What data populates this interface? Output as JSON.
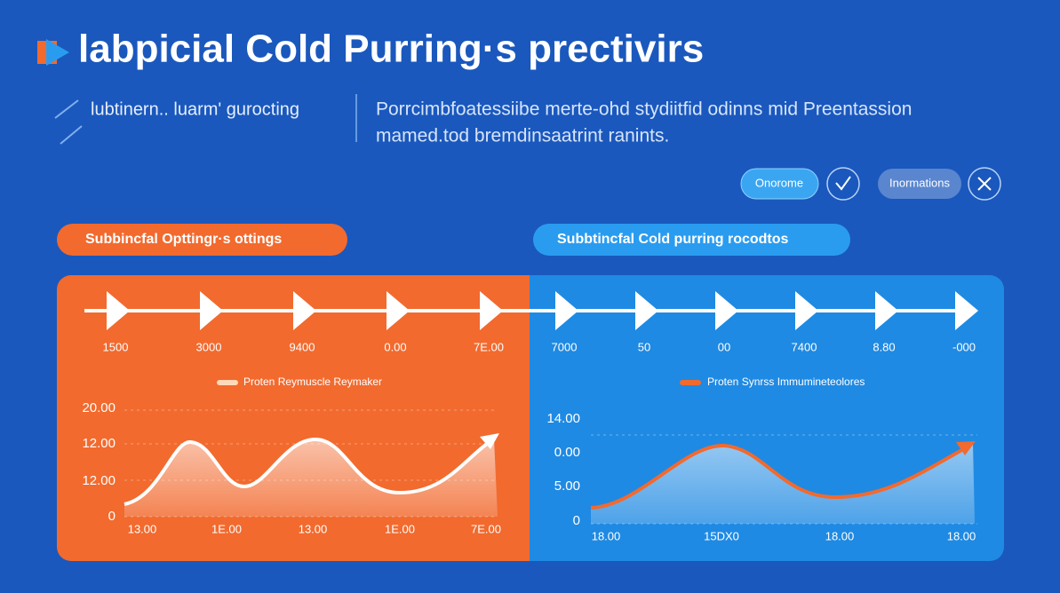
{
  "header": {
    "title": "labpicial Cold Purring·s prectivirs",
    "subtitle": "lubtinern.. luarm' gurocting",
    "description": [
      "Porrcimbfoatessiibe merte-ohd stydiitfid odinns mid Preentassion",
      "mamed.tod bremdinsaatrint ranints."
    ]
  },
  "toolbar": {
    "primary_button": "Onorome",
    "secondary_button": "Inormations"
  },
  "panels": [
    {
      "label": "Subbincfal Opttingr·s ottings",
      "timeline": [
        "1500",
        "3000",
        "9400",
        "0.00",
        "7E.00"
      ],
      "legend": "Proten Reymuscle Reymaker",
      "y_labels": [
        "20.00",
        "12.00",
        "12.00",
        "0"
      ],
      "x_labels": [
        "13.00",
        "1E.00",
        "13.00",
        "1E.00",
        "7E.00"
      ]
    },
    {
      "label": "Subbtincfal Cold purring rocodtos",
      "timeline": [
        "7000",
        "50",
        "00",
        "7400",
        "8.80",
        "-000"
      ],
      "legend": "Proten Synrss Immumineteolores",
      "y_labels": [
        "14.00",
        "0.00",
        "5.00",
        "0"
      ],
      "x_labels": [
        "18.00",
        "15DX0",
        "18.00",
        "18.00"
      ]
    }
  ]
}
